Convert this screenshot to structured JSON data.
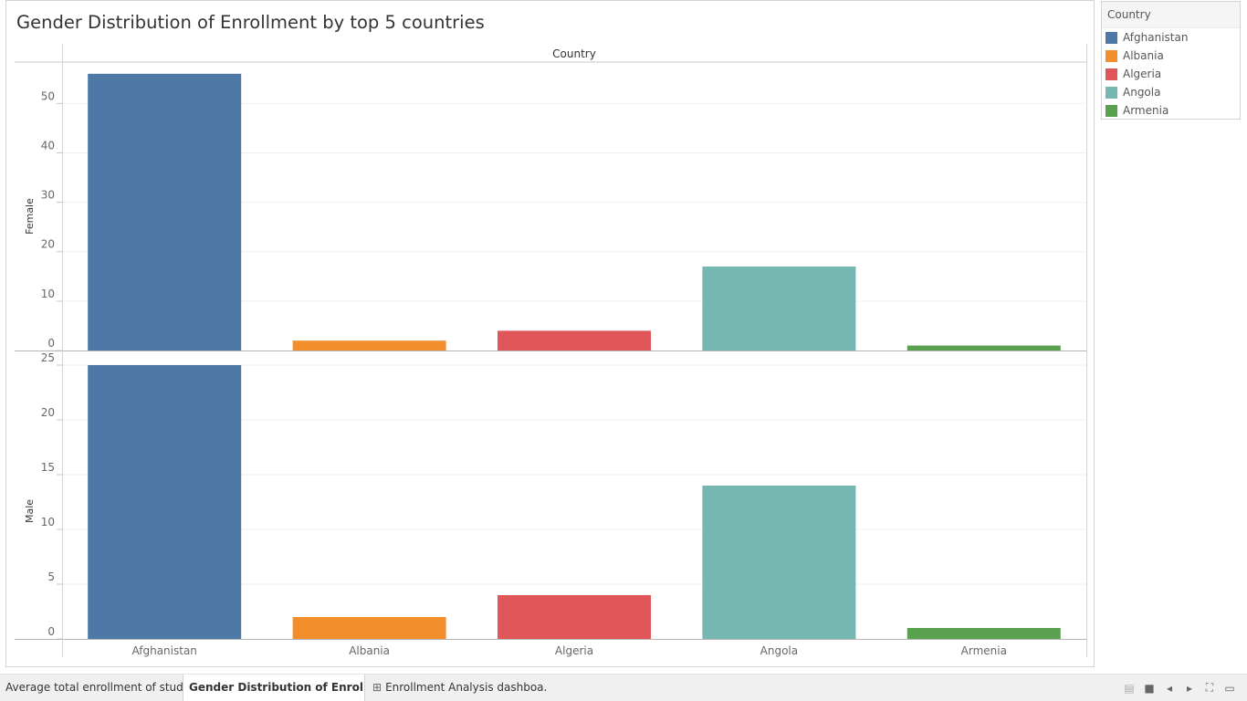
{
  "title": "Gender Distribution of Enrollment by top 5 countries",
  "legend": {
    "title": "Country",
    "items": [
      {
        "label": "Afghanistan",
        "color": "#4e79a7"
      },
      {
        "label": "Albania",
        "color": "#f28e2b"
      },
      {
        "label": "Algeria",
        "color": "#e15759"
      },
      {
        "label": "Angola",
        "color": "#76b7b2"
      },
      {
        "label": "Armenia",
        "color": "#59a14f"
      }
    ]
  },
  "tabs": [
    {
      "label": "Average total enrollment of stud...",
      "active": false,
      "icon": ""
    },
    {
      "label": "Gender Distribution of Enrollm...",
      "active": true,
      "icon": ""
    },
    {
      "label": "Enrollment Analysis dashboa...",
      "active": false,
      "icon": "dashboard-icon"
    }
  ],
  "chart_data": {
    "type": "bar",
    "column_header": "Country",
    "categories": [
      "Afghanistan",
      "Albania",
      "Algeria",
      "Angola",
      "Armenia"
    ],
    "colors": [
      "#4e79a7",
      "#f28e2b",
      "#e15759",
      "#76b7b2",
      "#59a14f"
    ],
    "panels": [
      {
        "name": "Female",
        "values": [
          56,
          2,
          4,
          17,
          1
        ],
        "ylim": [
          0,
          58
        ],
        "ticks": [
          0,
          10,
          20,
          30,
          40,
          50
        ]
      },
      {
        "name": "Male",
        "values": [
          25,
          2,
          4,
          14,
          1
        ],
        "ylim": [
          0,
          25
        ],
        "ticks": [
          0,
          5,
          10,
          15,
          20,
          25
        ]
      }
    ],
    "grid": true,
    "legend_position": "right"
  }
}
